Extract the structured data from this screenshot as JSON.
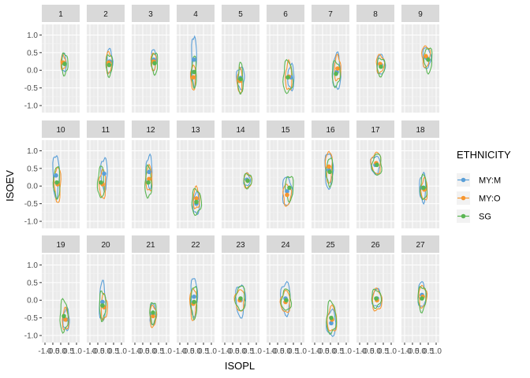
{
  "chart_data": {
    "type": "scatter",
    "subtype": "faceted density contours with group means",
    "xlabel": "ISOPL",
    "ylabel": "ISOEV",
    "xlim": [
      -1.2,
      1.2
    ],
    "ylim": [
      -1.2,
      1.3
    ],
    "x_ticks": [
      -1.0,
      -0.5,
      0.0,
      0.5,
      1.0
    ],
    "x_tick_labels": [
      "-1.0",
      "-0.5",
      "0.0",
      "0.5",
      "1.0"
    ],
    "y_ticks": [
      -1.0,
      -0.5,
      0.0,
      0.5,
      1.0
    ],
    "y_tick_labels": [
      "-1.0",
      "-0.5",
      "0.0",
      "0.5",
      "1.0"
    ],
    "grid": true,
    "legend": {
      "title": "ETHNICITY",
      "position": "right",
      "entries": [
        {
          "name": "MY:M",
          "color": "#5a9fd8"
        },
        {
          "name": "MY:O",
          "color": "#f7962f"
        },
        {
          "name": "SG",
          "color": "#5ab552"
        }
      ]
    },
    "panels": [
      {
        "label": "1",
        "means": [
          [
            0.2,
            0.2
          ],
          [
            0.15,
            0.22
          ],
          [
            0.25,
            0.18
          ]
        ],
        "spreads": [
          [
            0.15,
            0.25
          ],
          [
            0.15,
            0.2
          ],
          [
            0.2,
            0.3
          ]
        ]
      },
      {
        "label": "2",
        "means": [
          [
            0.25,
            0.25
          ],
          [
            0.2,
            0.22
          ],
          [
            0.22,
            0.15
          ]
        ],
        "spreads": [
          [
            0.18,
            0.35
          ],
          [
            0.18,
            0.3
          ],
          [
            0.2,
            0.3
          ]
        ]
      },
      {
        "label": "3",
        "means": [
          [
            0.2,
            0.3
          ],
          [
            0.18,
            0.25
          ],
          [
            0.25,
            0.2
          ]
        ],
        "spreads": [
          [
            0.15,
            0.3
          ],
          [
            0.15,
            0.25
          ],
          [
            0.2,
            0.3
          ]
        ]
      },
      {
        "label": "4",
        "means": [
          [
            -0.1,
            0.3
          ],
          [
            -0.15,
            -0.2
          ],
          [
            -0.1,
            -0.05
          ]
        ],
        "spreads": [
          [
            0.15,
            0.7
          ],
          [
            0.15,
            0.35
          ],
          [
            0.15,
            0.45
          ]
        ]
      },
      {
        "label": "5",
        "means": [
          [
            0.0,
            -0.22
          ],
          [
            -0.05,
            -0.3
          ],
          [
            0.0,
            -0.25
          ]
        ],
        "spreads": [
          [
            0.25,
            0.3
          ],
          [
            0.15,
            0.35
          ],
          [
            0.15,
            0.45
          ]
        ]
      },
      {
        "label": "6",
        "means": [
          [
            0.35,
            -0.2
          ],
          [
            0.2,
            -0.18
          ],
          [
            0.15,
            -0.2
          ]
        ],
        "spreads": [
          [
            0.2,
            0.35
          ],
          [
            0.2,
            0.4
          ],
          [
            0.3,
            0.45
          ]
        ]
      },
      {
        "label": "7",
        "means": [
          [
            0.4,
            -0.05
          ],
          [
            0.45,
            0.05
          ],
          [
            0.35,
            -0.1
          ]
        ],
        "spreads": [
          [
            0.25,
            0.5
          ],
          [
            0.2,
            0.35
          ],
          [
            0.25,
            0.35
          ]
        ]
      },
      {
        "label": "8",
        "means": [
          [
            0.35,
            0.15
          ],
          [
            0.3,
            0.18
          ],
          [
            0.35,
            0.1
          ]
        ],
        "spreads": [
          [
            0.25,
            0.28
          ],
          [
            0.25,
            0.25
          ],
          [
            0.25,
            0.25
          ]
        ]
      },
      {
        "label": "9",
        "means": [
          [
            0.4,
            0.35
          ],
          [
            0.35,
            0.4
          ],
          [
            0.5,
            0.3
          ]
        ],
        "spreads": [
          [
            0.25,
            0.3
          ],
          [
            0.25,
            0.3
          ],
          [
            0.25,
            0.35
          ]
        ]
      },
      {
        "label": "10",
        "means": [
          [
            -0.3,
            0.3
          ],
          [
            -0.2,
            0.05
          ],
          [
            -0.25,
            0.1
          ]
        ],
        "spreads": [
          [
            0.2,
            0.6
          ],
          [
            0.2,
            0.5
          ],
          [
            0.2,
            0.45
          ]
        ]
      },
      {
        "label": "11",
        "means": [
          [
            -0.1,
            0.35
          ],
          [
            -0.2,
            0.05
          ],
          [
            -0.3,
            0.1
          ]
        ],
        "spreads": [
          [
            0.2,
            0.45
          ],
          [
            0.2,
            0.4
          ],
          [
            0.2,
            0.45
          ]
        ]
      },
      {
        "label": "12",
        "means": [
          [
            -0.1,
            0.4
          ],
          [
            -0.1,
            0.2
          ],
          [
            -0.15,
            0.1
          ]
        ],
        "spreads": [
          [
            0.2,
            0.45
          ],
          [
            0.2,
            0.35
          ],
          [
            0.2,
            0.45
          ]
        ]
      },
      {
        "label": "13",
        "means": [
          [
            0.05,
            -0.5
          ],
          [
            0.05,
            -0.35
          ],
          [
            0.05,
            -0.45
          ]
        ],
        "spreads": [
          [
            0.2,
            0.3
          ],
          [
            0.2,
            0.3
          ],
          [
            0.3,
            0.35
          ]
        ]
      },
      {
        "label": "14",
        "means": [
          [
            0.4,
            0.18
          ],
          [
            0.45,
            0.15
          ],
          [
            0.45,
            0.15
          ]
        ],
        "spreads": [
          [
            0.2,
            0.18
          ],
          [
            0.25,
            0.2
          ],
          [
            0.25,
            0.2
          ]
        ]
      },
      {
        "label": "15",
        "means": [
          [
            0.1,
            -0.15
          ],
          [
            0.1,
            -0.25
          ],
          [
            0.25,
            -0.05
          ]
        ],
        "spreads": [
          [
            0.3,
            0.4
          ],
          [
            0.25,
            0.3
          ],
          [
            0.25,
            0.35
          ]
        ]
      },
      {
        "label": "16",
        "means": [
          [
            -0.1,
            0.45
          ],
          [
            -0.1,
            0.55
          ],
          [
            -0.05,
            0.4
          ]
        ],
        "spreads": [
          [
            0.25,
            0.5
          ],
          [
            0.2,
            0.45
          ],
          [
            0.2,
            0.4
          ]
        ]
      },
      {
        "label": "17",
        "means": [
          [
            0.0,
            0.6
          ],
          [
            0.05,
            0.65
          ],
          [
            0.1,
            0.6
          ]
        ],
        "spreads": [
          [
            0.3,
            0.25
          ],
          [
            0.3,
            0.3
          ],
          [
            0.3,
            0.3
          ]
        ]
      },
      {
        "label": "18",
        "means": [
          [
            0.15,
            -0.05
          ],
          [
            0.25,
            -0.1
          ],
          [
            0.2,
            -0.05
          ]
        ],
        "spreads": [
          [
            0.2,
            0.4
          ],
          [
            0.2,
            0.3
          ],
          [
            0.2,
            0.35
          ]
        ]
      },
      {
        "label": "19",
        "means": [
          [
            0.35,
            -0.55
          ],
          [
            0.3,
            -0.55
          ],
          [
            0.2,
            -0.45
          ]
        ],
        "spreads": [
          [
            0.2,
            0.3
          ],
          [
            0.2,
            0.3
          ],
          [
            0.25,
            0.45
          ]
        ]
      },
      {
        "label": "20",
        "means": [
          [
            -0.2,
            -0.05
          ],
          [
            -0.1,
            -0.2
          ],
          [
            -0.2,
            -0.15
          ]
        ],
        "spreads": [
          [
            0.2,
            0.55
          ],
          [
            0.2,
            0.35
          ],
          [
            0.2,
            0.4
          ]
        ]
      },
      {
        "label": "21",
        "means": [
          [
            0.15,
            -0.4
          ],
          [
            0.15,
            -0.45
          ],
          [
            0.15,
            -0.35
          ]
        ],
        "spreads": [
          [
            0.2,
            0.3
          ],
          [
            0.2,
            0.3
          ],
          [
            0.2,
            0.3
          ]
        ]
      },
      {
        "label": "22",
        "means": [
          [
            -0.1,
            0.1
          ],
          [
            -0.15,
            -0.1
          ],
          [
            -0.1,
            -0.05
          ]
        ],
        "spreads": [
          [
            0.2,
            0.55
          ],
          [
            0.2,
            0.45
          ],
          [
            0.2,
            0.45
          ]
        ]
      },
      {
        "label": "23",
        "means": [
          [
            0.0,
            0.0
          ],
          [
            -0.05,
            0.0
          ],
          [
            0.0,
            0.05
          ]
        ],
        "spreads": [
          [
            0.3,
            0.45
          ],
          [
            0.3,
            0.3
          ],
          [
            0.3,
            0.35
          ]
        ]
      },
      {
        "label": "24",
        "means": [
          [
            0.0,
            0.05
          ],
          [
            0.0,
            -0.05
          ],
          [
            0.05,
            0.0
          ]
        ],
        "spreads": [
          [
            0.3,
            0.45
          ],
          [
            0.3,
            0.3
          ],
          [
            0.3,
            0.3
          ]
        ]
      },
      {
        "label": "25",
        "means": [
          [
            0.05,
            -0.65
          ],
          [
            0.1,
            -0.55
          ],
          [
            0.05,
            -0.5
          ]
        ],
        "spreads": [
          [
            0.3,
            0.35
          ],
          [
            0.3,
            0.35
          ],
          [
            0.3,
            0.45
          ]
        ]
      },
      {
        "label": "26",
        "means": [
          [
            0.1,
            0.05
          ],
          [
            0.1,
            0.0
          ],
          [
            0.05,
            0.05
          ]
        ],
        "spreads": [
          [
            0.3,
            0.25
          ],
          [
            0.3,
            0.3
          ],
          [
            0.3,
            0.25
          ]
        ]
      },
      {
        "label": "27",
        "means": [
          [
            0.1,
            0.15
          ],
          [
            0.15,
            0.1
          ],
          [
            0.1,
            0.05
          ]
        ],
        "spreads": [
          [
            0.25,
            0.35
          ],
          [
            0.25,
            0.3
          ],
          [
            0.25,
            0.35
          ]
        ]
      }
    ]
  }
}
